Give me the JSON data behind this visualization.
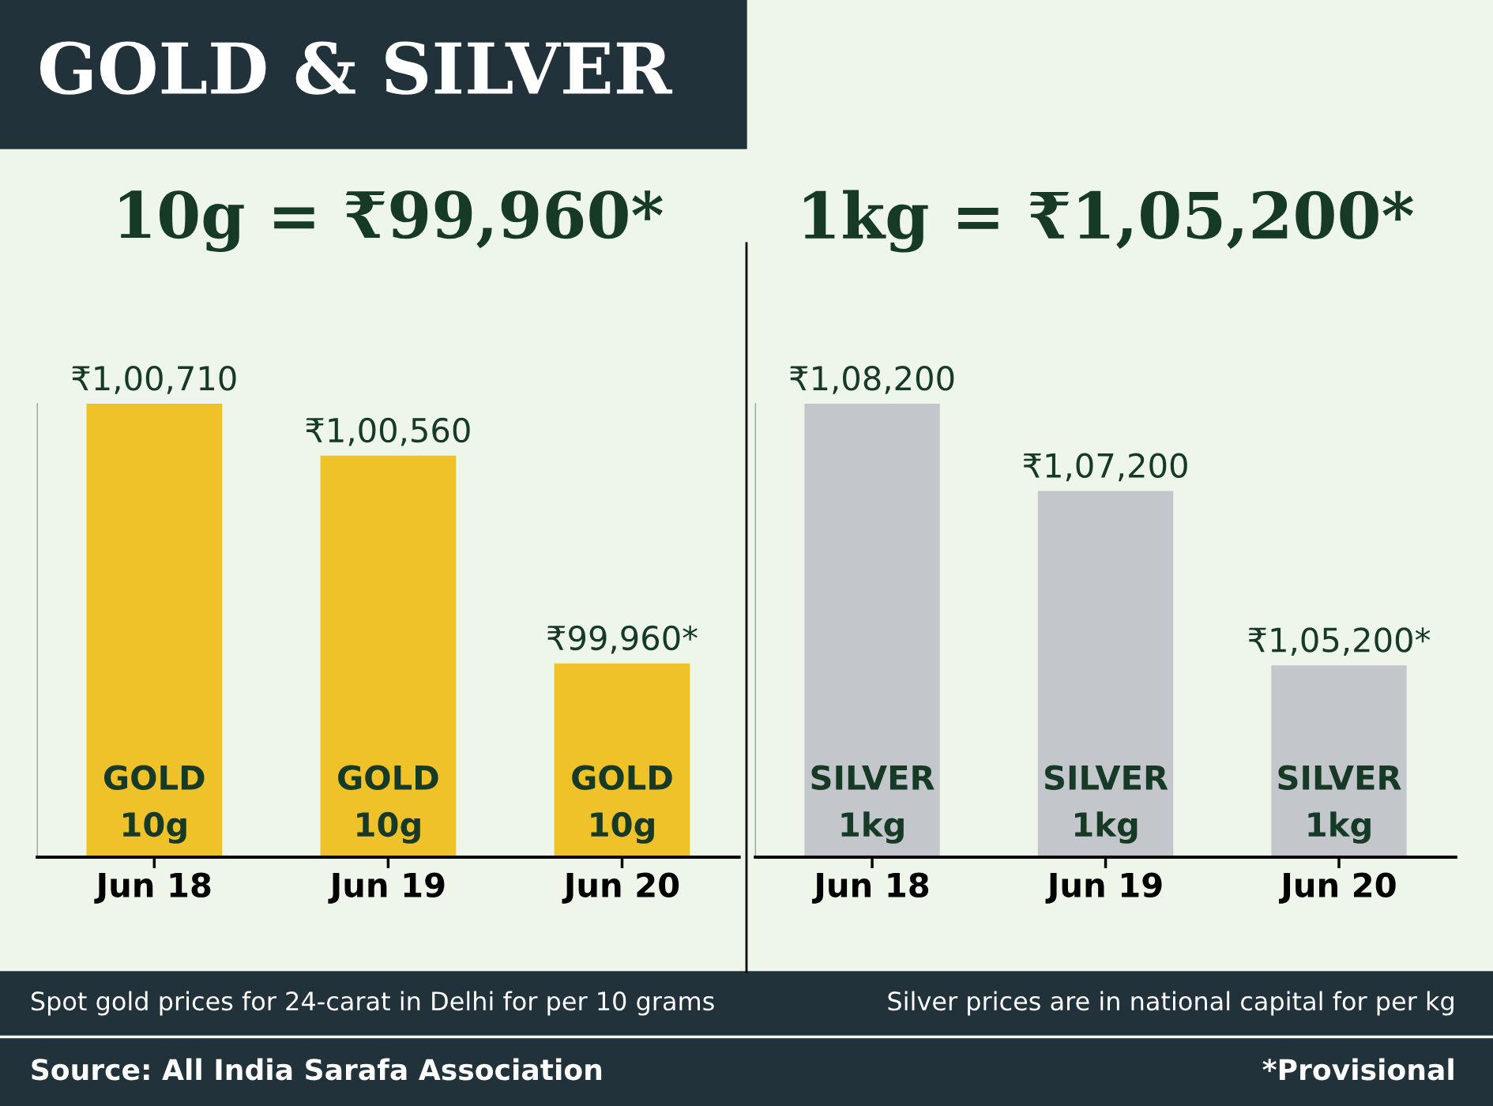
{
  "chart_data": [
    {
      "type": "bar",
      "title": "GOLD & SILVER",
      "subtitle": "10g = ₹99,960*",
      "categories": [
        "Jun 18",
        "Jun 19",
        "Jun 20"
      ],
      "series": [
        {
          "color": "#f0c22a",
          "values": [
            100710,
            100560,
            99960
          ],
          "value_labels": [
            "₹1,00,710",
            "₹1,00,560",
            "₹99,960*"
          ]
        }
      ],
      "ylim": [
        99400,
        100710
      ],
      "tick_labels": "x",
      "grid": false,
      "legend": false,
      "annotations": [
        "GOLD\n10g",
        "GOLD\n10g",
        "GOLD\n10g",
        "Spot gold prices for 24-carat in Delhi for per 10 grams",
        "Source: All India Sarafa Association"
      ]
    },
    {
      "type": "bar",
      "subtitle": "1kg = ₹1,05,200*",
      "categories": [
        "Jun 18",
        "Jun 19",
        "Jun 20"
      ],
      "series": [
        {
          "color": "#c3c7cb",
          "values": [
            108200,
            107200,
            105200
          ],
          "value_labels": [
            "₹1,08,200",
            "₹1,07,200",
            "₹1,05,200*"
          ]
        }
      ],
      "ylim": [
        103000,
        108200
      ],
      "tick_labels": "x",
      "grid": false,
      "legend": false,
      "annotations": [
        "SILVER\n1kg",
        "SILVER\n1kg",
        "SILVER\n1kg",
        "Silver prices are in national capital for per kg",
        "*Provisional"
      ]
    }
  ]
}
